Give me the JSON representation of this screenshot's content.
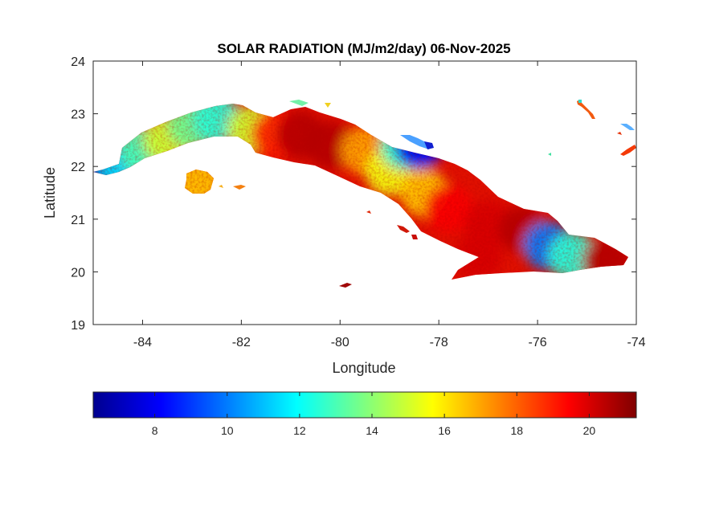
{
  "title": "SOLAR RADIATION (MJ/m2/day) 06-Nov-2025",
  "x_axis": {
    "label": "Longitude",
    "range": [
      -85,
      -74
    ],
    "ticks": [
      -84,
      -82,
      -80,
      -78,
      -76,
      -74
    ],
    "tick_labels": [
      "-84",
      "-82",
      "-80",
      "-78",
      "-76",
      "-74"
    ]
  },
  "y_axis": {
    "label": "Latitude",
    "range": [
      19,
      24
    ],
    "ticks": [
      19,
      20,
      21,
      22,
      23,
      24
    ],
    "tick_labels": [
      "19",
      "20",
      "21",
      "22",
      "23",
      "24"
    ]
  },
  "colorbar": {
    "colormap": "jet",
    "range": [
      6.3,
      21.3
    ],
    "ticks": [
      8,
      10,
      12,
      14,
      16,
      18,
      20
    ],
    "tick_labels": [
      "8",
      "10",
      "12",
      "14",
      "16",
      "18",
      "20"
    ]
  },
  "chart_data": {
    "type": "heatmap",
    "title": "SOLAR RADIATION (MJ/m2/day) 06-Nov-2025",
    "xlabel": "Longitude",
    "ylabel": "Latitude",
    "xlim": [
      -85,
      -74
    ],
    "ylim": [
      19,
      24
    ],
    "color_range": [
      6.3,
      21.3
    ],
    "colormap": "jet",
    "grid": false,
    "regions": [
      {
        "lon": -84.8,
        "lat": 21.9,
        "value": 7.5
      },
      {
        "lon": -84.4,
        "lat": 22.0,
        "value": 11.5
      },
      {
        "lon": -84.0,
        "lat": 22.3,
        "value": 13.0
      },
      {
        "lon": -83.5,
        "lat": 22.5,
        "value": 15.0
      },
      {
        "lon": -83.0,
        "lat": 22.8,
        "value": 13.5
      },
      {
        "lon": -82.5,
        "lat": 22.9,
        "value": 12.5
      },
      {
        "lon": -82.9,
        "lat": 21.7,
        "value": 16.5
      },
      {
        "lon": -81.8,
        "lat": 22.7,
        "value": 15.0
      },
      {
        "lon": -81.3,
        "lat": 22.6,
        "value": 19.0
      },
      {
        "lon": -80.8,
        "lat": 22.6,
        "value": 20.5
      },
      {
        "lon": -80.2,
        "lat": 22.4,
        "value": 20.5
      },
      {
        "lon": -79.5,
        "lat": 22.3,
        "value": 17.0
      },
      {
        "lon": -79.0,
        "lat": 21.9,
        "value": 15.5
      },
      {
        "lon": -78.7,
        "lat": 22.4,
        "value": 12.5
      },
      {
        "lon": -78.4,
        "lat": 22.4,
        "value": 8.0
      },
      {
        "lon": -78.3,
        "lat": 21.5,
        "value": 16.5
      },
      {
        "lon": -77.8,
        "lat": 21.2,
        "value": 19.5
      },
      {
        "lon": -77.0,
        "lat": 20.9,
        "value": 20.0
      },
      {
        "lon": -76.3,
        "lat": 20.8,
        "value": 20.5
      },
      {
        "lon": -77.2,
        "lat": 20.3,
        "value": 20.0
      },
      {
        "lon": -75.8,
        "lat": 20.5,
        "value": 10.0
      },
      {
        "lon": -75.3,
        "lat": 20.3,
        "value": 12.5
      },
      {
        "lon": -74.6,
        "lat": 20.2,
        "value": 20.5
      }
    ]
  }
}
